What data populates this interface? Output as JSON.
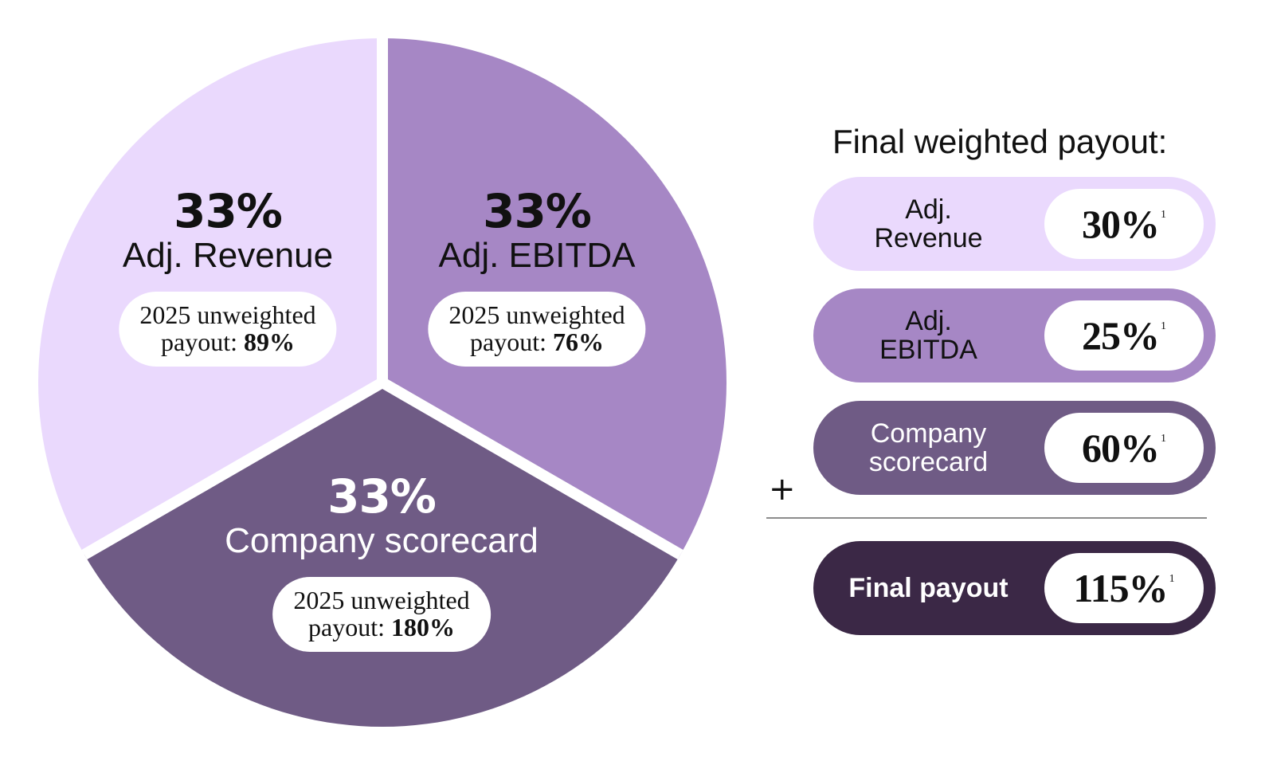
{
  "chart_data": [
    {
      "type": "pie",
      "slices": [
        {
          "pct_label": "33%",
          "name": "Adj. Revenue",
          "value": 33,
          "pill_line1": "2025 unweighted",
          "pill_prefix": "payout: ",
          "pill_value": "89%",
          "color": "#ead9fd"
        },
        {
          "pct_label": "33%",
          "name": "Adj. EBITDA",
          "value": 33,
          "pill_line1": "2025 unweighted",
          "pill_prefix": "payout: ",
          "pill_value": "76%",
          "color": "#a687c5"
        },
        {
          "pct_label": "33%",
          "name": "Company scorecard",
          "value": 33,
          "pill_line1": "2025 unweighted",
          "pill_prefix": "payout: ",
          "pill_value": "180%",
          "color": "#6f5b85"
        }
      ]
    }
  ],
  "payout": {
    "title": "Final weighted payout:",
    "rows": [
      {
        "label_line1": "Adj.",
        "label_line2": "Revenue",
        "value": "30%",
        "footnote": "1",
        "color": "#ead9fd",
        "text_color": "#111111"
      },
      {
        "label_line1": "Adj.",
        "label_line2": "EBITDA",
        "value": "25%",
        "footnote": "1",
        "color": "#a687c5",
        "text_color": "#111111"
      },
      {
        "label_line1": "Company",
        "label_line2": "scorecard",
        "value": "60%",
        "footnote": "1",
        "color": "#6f5b85",
        "text_color": "#ffffff"
      }
    ],
    "plus": "+",
    "final": {
      "label": "Final payout",
      "value": "115%",
      "footnote": "1",
      "color": "#3b2846",
      "text_color": "#ffffff"
    }
  }
}
